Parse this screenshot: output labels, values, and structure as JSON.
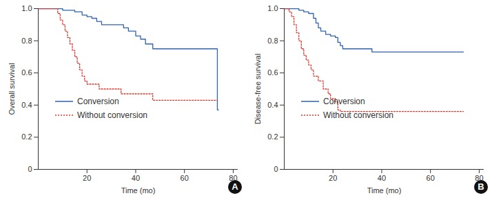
{
  "chart_data": [
    {
      "type": "line",
      "title": "A",
      "x_label": "Time (mo)",
      "y_label": "Overall survival",
      "xlim": [
        0,
        82
      ],
      "xticks": [
        20,
        40,
        60,
        80
      ],
      "ylim": [
        0,
        1
      ],
      "yticks": [
        0,
        0.2,
        0.4,
        0.6,
        0.8,
        {
          "value": 1,
          "label": "1.0"
        }
      ],
      "legend": "bottom-left",
      "series": [
        {
          "name": "Conversion",
          "color": "#2f62b0",
          "line_style": "solid",
          "x": [
            0,
            10,
            15,
            18,
            20,
            22,
            24,
            26,
            35,
            37,
            40,
            42,
            44,
            47,
            73.5,
            74
          ],
          "values": [
            1.0,
            0.99,
            0.98,
            0.96,
            0.95,
            0.94,
            0.92,
            0.9,
            0.88,
            0.86,
            0.83,
            0.81,
            0.78,
            0.75,
            0.37,
            0.37
          ]
        },
        {
          "name": "Without conversion",
          "color": "#e0352b",
          "line_style": "dotted",
          "x": [
            0,
            8,
            9,
            10,
            11,
            12,
            13,
            14,
            15,
            16,
            17,
            18,
            19,
            20,
            25,
            34,
            47,
            73.5
          ],
          "values": [
            1.0,
            0.97,
            0.93,
            0.9,
            0.86,
            0.82,
            0.78,
            0.74,
            0.7,
            0.66,
            0.62,
            0.58,
            0.55,
            0.53,
            0.5,
            0.47,
            0.43,
            0.43
          ]
        }
      ]
    },
    {
      "type": "line",
      "title": "B",
      "x_label": "Time (mo)",
      "y_label": "Disease-free survival",
      "xlim": [
        0,
        82
      ],
      "xticks": [
        20,
        40,
        60,
        80
      ],
      "ylim": [
        0,
        1
      ],
      "yticks": [
        0,
        0.2,
        0.4,
        0.6,
        0.8,
        {
          "value": 1,
          "label": "1.0"
        }
      ],
      "legend": "bottom-left",
      "series": [
        {
          "name": "Conversion",
          "color": "#2f62b0",
          "line_style": "solid",
          "x": [
            0,
            6,
            8,
            10,
            12,
            13,
            14,
            15,
            17,
            19,
            21,
            22,
            23,
            24,
            36,
            73.5
          ],
          "values": [
            1.0,
            0.99,
            0.98,
            0.97,
            0.94,
            0.91,
            0.88,
            0.86,
            0.84,
            0.83,
            0.82,
            0.79,
            0.77,
            0.75,
            0.73,
            0.73
          ]
        },
        {
          "name": "Without conversion",
          "color": "#e0352b",
          "line_style": "dotted",
          "x": [
            0,
            2,
            3,
            4,
            5,
            6,
            7,
            8,
            9,
            10,
            11,
            12,
            14,
            16,
            18,
            19,
            21,
            22,
            23,
            73.5
          ],
          "values": [
            1.0,
            0.98,
            0.95,
            0.9,
            0.85,
            0.8,
            0.75,
            0.71,
            0.68,
            0.65,
            0.62,
            0.58,
            0.55,
            0.5,
            0.47,
            0.44,
            0.42,
            0.37,
            0.36,
            0.36
          ]
        }
      ]
    }
  ]
}
